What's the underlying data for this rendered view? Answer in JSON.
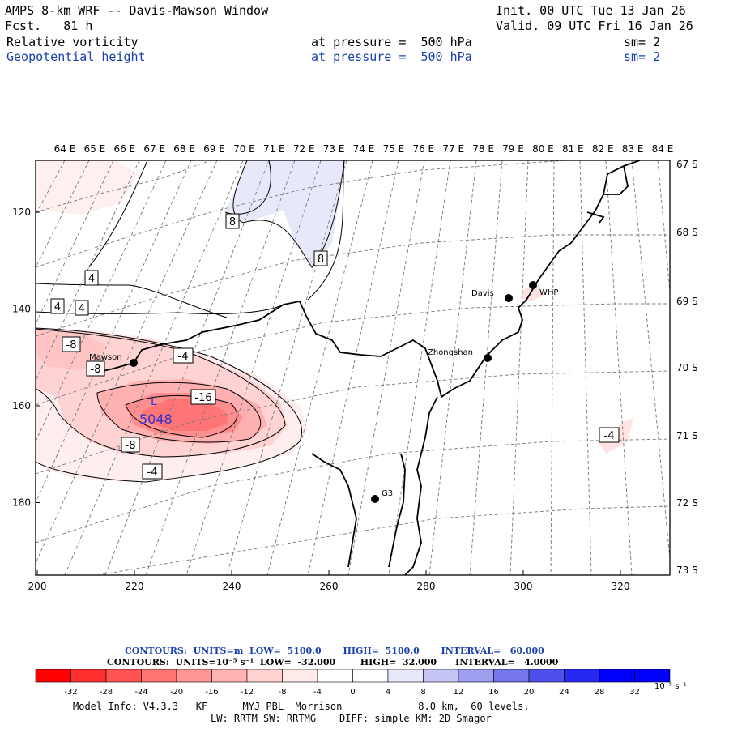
{
  "header": {
    "title": "AMPS 8-km WRF -- Davis-Mawson Window",
    "fcst": "Fcst.   81 h",
    "init": "Init. 00 UTC Tue 13 Jan 26",
    "valid": "Valid. 09 UTC Fri 16 Jan 26",
    "field1": "Relative vorticity",
    "field1_level": "at pressure =  500 hPa",
    "field1_sm": "sm= 2",
    "field2": "Geopotential height",
    "field2_level": "at pressure =  500 hPa",
    "field2_sm": "sm= 2"
  },
  "map": {
    "lon_labels": [
      "64 E",
      "65 E",
      "66 E",
      "67 E",
      "68 E",
      "69 E",
      "70 E",
      "71 E",
      "72 E",
      "73 E",
      "74 E",
      "75 E",
      "76 E",
      "77 E",
      "78 E",
      "79 E",
      "80 E",
      "81 E",
      "82 E",
      "83 E",
      "84 E"
    ],
    "lat_labels": [
      "67 S",
      "68 S",
      "69 S",
      "70 S",
      "71 S",
      "72 S",
      "73 S"
    ],
    "x_ticks": [
      "200",
      "220",
      "240",
      "260",
      "280",
      "300",
      "320"
    ],
    "y_ticks": [
      "120",
      "140",
      "160",
      "180"
    ],
    "stations": [
      {
        "name": "Mawson"
      },
      {
        "name": "Davis"
      },
      {
        "name": "WHP"
      },
      {
        "name": "Zhongshan"
      },
      {
        "name": "G3"
      }
    ],
    "contour_labels": [
      "8",
      "8",
      "4",
      "4",
      "4",
      "-8",
      "-8",
      "-4",
      "-16",
      "-8",
      "-4",
      "-4"
    ],
    "low_marker": "L",
    "low_value": "5048"
  },
  "contours_info": {
    "line1": "CONTOURS:  UNITS=m  LOW=  5100.0       HIGH=  5100.0       INTERVAL=   60.000",
    "line2": "CONTOURS:  UNITS=10⁻⁵ s⁻¹  LOW=  -32.000        HIGH=  32.000      INTERVAL=   4.0000"
  },
  "colorbar": {
    "labels": [
      "-32",
      "-28",
      "-24",
      "-20",
      "-16",
      "-12",
      "-8",
      "-4",
      "0",
      "4",
      "8",
      "12",
      "16",
      "20",
      "24",
      "28",
      "32"
    ],
    "unit_label": "10⁻⁵ s⁻¹",
    "colors": [
      "#ff0000",
      "#ff2f2f",
      "#ff5252",
      "#ff7373",
      "#ff9696",
      "#ffb3b3",
      "#ffd1d1",
      "#ffeaea",
      "#ffffff",
      "#ffffff",
      "#e8e8fb",
      "#c6c6f6",
      "#9f9ff0",
      "#7777ec",
      "#4f4fee",
      "#2828f3",
      "#0000ff"
    ]
  },
  "model_info": {
    "line1": "Model Info: V4.3.3   KF      MYJ PBL  Morrison             8.0 km,  60 levels,",
    "line2": "LW: RRTM SW: RRTMG    DIFF: simple KM: 2D Smagor"
  }
}
